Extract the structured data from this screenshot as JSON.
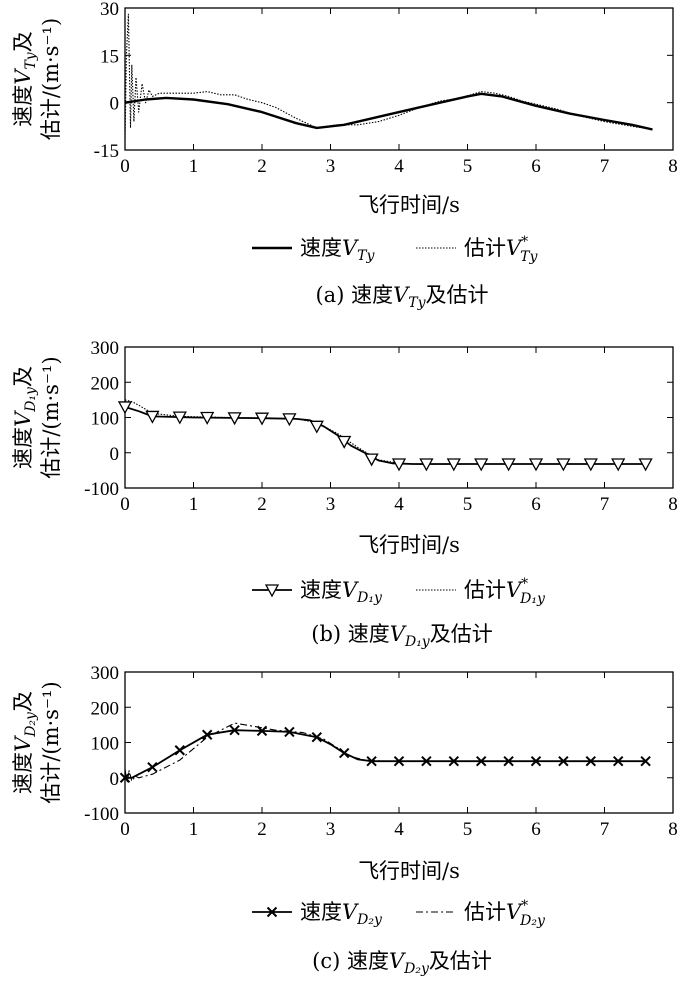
{
  "figure": {
    "panels": [
      {
        "caption": {
          "pre": "(a) 速度",
          "var": "V",
          "sub": "Ty",
          "post": "及估计"
        },
        "ylabel": {
          "line1_pre": "速度",
          "var": "V",
          "sub": "Ty",
          "line1_post": "及",
          "line2": "估计/(m·s⁻¹)"
        },
        "legend": {
          "actual_pre": "速度",
          "actual_var": "V",
          "actual_sub": "Ty",
          "est_pre": "估计",
          "est_var": "V",
          "est_sup": "*",
          "est_sub": "Ty"
        }
      },
      {
        "caption": {
          "pre": "(b) 速度",
          "var": "V",
          "sub": "D₁y",
          "post": "及估计"
        },
        "ylabel": {
          "line1_pre": "速度",
          "var": "V",
          "sub": "D₁y",
          "line1_post": "及",
          "line2": "估计/(m·s⁻¹)"
        },
        "legend": {
          "actual_pre": "速度",
          "actual_var": "V",
          "actual_sub": "D₁y",
          "est_pre": "估计",
          "est_var": "V",
          "est_sup": "*",
          "est_sub": "D₁y"
        }
      },
      {
        "caption": {
          "pre": "(c) 速度",
          "var": "V",
          "sub": "D₂y",
          "post": "及估计"
        },
        "ylabel": {
          "line1_pre": "速度",
          "var": "V",
          "sub": "D₂y",
          "line1_post": "及",
          "line2": "估计/(m·s⁻¹)"
        },
        "legend": {
          "actual_pre": "速度",
          "actual_var": "V",
          "actual_sub": "D₂y",
          "est_pre": "估计",
          "est_var": "V",
          "est_sup": "*",
          "est_sub": "D₂y"
        }
      }
    ]
  },
  "chart_data": [
    {
      "type": "line",
      "xlabel": "飞行时间/s",
      "xlim": [
        0,
        8
      ],
      "ylim": [
        -15,
        30
      ],
      "xticks": [
        0,
        1,
        2,
        3,
        4,
        5,
        6,
        7,
        8
      ],
      "yticks": [
        -15,
        0,
        15,
        30
      ],
      "grid": false,
      "series": [
        {
          "name": "速度V_Ty",
          "style": "solid-thick",
          "marker": "none",
          "x": [
            0,
            0.3,
            0.6,
            1.0,
            1.5,
            2.0,
            2.5,
            2.8,
            3.2,
            3.6,
            4.0,
            4.5,
            5.0,
            5.2,
            5.5,
            6.0,
            6.5,
            7.0,
            7.4,
            7.7
          ],
          "y": [
            0,
            1,
            1.5,
            1,
            -0.5,
            -3,
            -6.5,
            -8,
            -7,
            -5,
            -3,
            -0.5,
            2,
            2.8,
            2,
            -1,
            -3.5,
            -5.5,
            -7,
            -8.5
          ]
        },
        {
          "name": "估计V*_Ty",
          "style": "dotted",
          "marker": "none",
          "x": [
            0,
            0.02,
            0.05,
            0.08,
            0.1,
            0.13,
            0.16,
            0.2,
            0.25,
            0.3,
            0.35,
            0.4,
            0.5,
            0.7,
            1.0,
            1.2,
            1.4,
            1.6,
            1.8,
            2.0,
            2.2,
            2.5,
            2.8,
            3.1,
            3.4,
            3.7,
            4.0,
            4.3,
            4.6,
            4.9,
            5.2,
            5.4,
            5.6,
            5.8,
            6.0,
            6.3,
            6.6,
            7.0,
            7.4,
            7.7
          ],
          "y": [
            -12,
            15,
            28,
            -8,
            12,
            -6,
            8,
            -3,
            6,
            0,
            4,
            2,
            3,
            3,
            3,
            3.5,
            2.5,
            2.5,
            1,
            0,
            -1.5,
            -5,
            -8,
            -7,
            -7,
            -6,
            -4,
            -1.5,
            0.5,
            1.5,
            3.5,
            3,
            2,
            0.5,
            -0.5,
            -2,
            -4,
            -6,
            -7.5,
            -8.5
          ]
        }
      ]
    },
    {
      "type": "line",
      "xlabel": "飞行时间/s",
      "xlim": [
        0,
        8
      ],
      "ylim": [
        -100,
        300
      ],
      "xticks": [
        0,
        1,
        2,
        3,
        4,
        5,
        6,
        7,
        8
      ],
      "yticks": [
        -100,
        0,
        100,
        200,
        300
      ],
      "grid": false,
      "series": [
        {
          "name": "速度V_D1y",
          "style": "solid",
          "marker": "triangle-down",
          "x": [
            0,
            0.2,
            0.4,
            1.0,
            2.0,
            2.5,
            2.7,
            2.9,
            3.1,
            3.3,
            3.5,
            3.7,
            3.9,
            4.2,
            5.0,
            6.0,
            7.0,
            7.6
          ],
          "y": [
            130,
            118,
            103,
            100,
            98,
            96,
            92,
            75,
            50,
            20,
            0,
            -22,
            -30,
            -32,
            -32,
            -32,
            -32,
            -32
          ],
          "marker_x": [
            0,
            0.4,
            0.8,
            1.2,
            1.6,
            2.0,
            2.4,
            2.8,
            3.2,
            3.6,
            4.0,
            4.4,
            4.8,
            5.2,
            5.6,
            6.0,
            6.4,
            6.8,
            7.2,
            7.6
          ],
          "marker_y": [
            130,
            103,
            101,
            100,
            99,
            98,
            96,
            75,
            32,
            -18,
            -32,
            -32,
            -32,
            -32,
            -32,
            -32,
            -32,
            -32,
            -32,
            -32
          ]
        },
        {
          "name": "估计V*_D1y",
          "style": "dotted",
          "marker": "none",
          "x": [
            0,
            0.1,
            0.2,
            0.4,
            0.8,
            1.5,
            2.0,
            2.5,
            2.8,
            3.1,
            3.4,
            3.7,
            4.0,
            4.3,
            5.0,
            6.0,
            7.0,
            7.6
          ],
          "y": [
            150,
            145,
            135,
            112,
            103,
            100,
            99,
            97,
            85,
            55,
            15,
            -20,
            -30,
            -33,
            -32,
            -32,
            -32,
            -32
          ]
        }
      ]
    },
    {
      "type": "line",
      "xlabel": "飞行时间/s",
      "xlim": [
        0,
        8
      ],
      "ylim": [
        -100,
        300
      ],
      "xticks": [
        0,
        1,
        2,
        3,
        4,
        5,
        6,
        7,
        8
      ],
      "yticks": [
        -100,
        0,
        100,
        200,
        300
      ],
      "grid": false,
      "series": [
        {
          "name": "速度V_D2y",
          "style": "solid",
          "marker": "x",
          "x": [
            0,
            0.1,
            0.4,
            0.8,
            1.2,
            1.6,
            2.0,
            2.4,
            2.8,
            3.0,
            3.2,
            3.4,
            3.6,
            4.0,
            5.0,
            6.0,
            7.0,
            7.6
          ],
          "y": [
            0,
            0,
            30,
            78,
            122,
            135,
            133,
            130,
            115,
            95,
            70,
            52,
            47,
            47,
            47,
            47,
            47,
            47
          ],
          "marker_x": [
            0,
            0.4,
            0.8,
            1.2,
            1.6,
            2.0,
            2.4,
            2.8,
            3.2,
            3.6,
            4.0,
            4.4,
            4.8,
            5.2,
            5.6,
            6.0,
            6.4,
            6.8,
            7.2,
            7.6
          ],
          "marker_y": [
            0,
            30,
            78,
            122,
            135,
            133,
            130,
            115,
            70,
            47,
            47,
            47,
            47,
            47,
            47,
            47,
            47,
            47,
            47,
            47
          ]
        },
        {
          "name": "估计V*_D2y",
          "style": "dashdot",
          "marker": "none",
          "x": [
            0,
            0.03,
            0.06,
            0.1,
            0.15,
            0.2,
            0.4,
            0.8,
            1.2,
            1.6,
            1.9,
            2.2,
            2.6,
            2.9,
            3.1,
            3.3,
            3.5,
            3.8,
            4.2,
            5.0,
            6.0,
            7.0,
            7.6
          ],
          "y": [
            25,
            -15,
            20,
            -10,
            5,
            0,
            10,
            50,
            115,
            155,
            145,
            135,
            128,
            110,
            85,
            60,
            50,
            47,
            47,
            47,
            47,
            47,
            47
          ]
        }
      ]
    }
  ]
}
